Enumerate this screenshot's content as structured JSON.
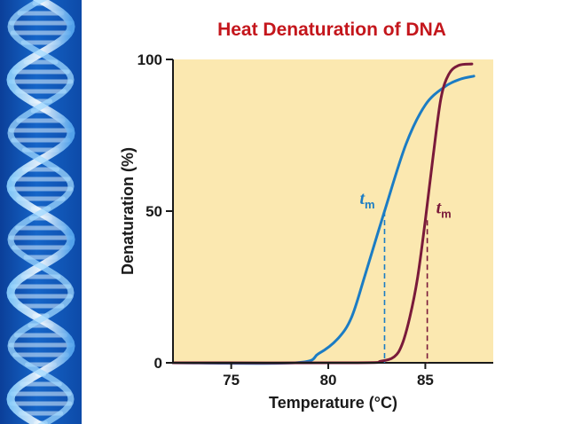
{
  "chart_data": {
    "type": "line",
    "title": "Heat Denaturation of DNA",
    "xlabel": "Temperature (°C)",
    "ylabel": "Denaturation (%)",
    "xlim": [
      72,
      88.5
    ],
    "ylim": [
      0,
      100
    ],
    "x_ticks": [
      75,
      80,
      85
    ],
    "y_ticks": [
      0,
      50,
      100
    ],
    "grid": false,
    "background_color": "#fbe8b0",
    "series": [
      {
        "color": "#1b7cc4",
        "x": [
          72,
          78.3,
          79.5,
          80.5,
          81.2,
          81.9,
          82.9,
          84,
          85,
          86,
          86.8,
          87.5
        ],
        "y": [
          0,
          0,
          3,
          8,
          15,
          29,
          50,
          72,
          85,
          91,
          93.5,
          94.5
        ],
        "tm": {
          "label_main": "t",
          "label_sub": "m",
          "x": 82.9,
          "y": 50
        }
      },
      {
        "color": "#7a1a3a",
        "x": [
          72,
          81.5,
          82.7,
          83.4,
          83.8,
          84.2,
          84.6,
          85,
          85.4,
          85.8,
          86.2,
          86.7,
          87.4
        ],
        "y": [
          0,
          0,
          0.5,
          2,
          6,
          15,
          28,
          47,
          68,
          87,
          95,
          98,
          98.5
        ],
        "tm": {
          "label_main": "t",
          "label_sub": "m",
          "x": 85.1,
          "y": 47
        }
      }
    ]
  }
}
